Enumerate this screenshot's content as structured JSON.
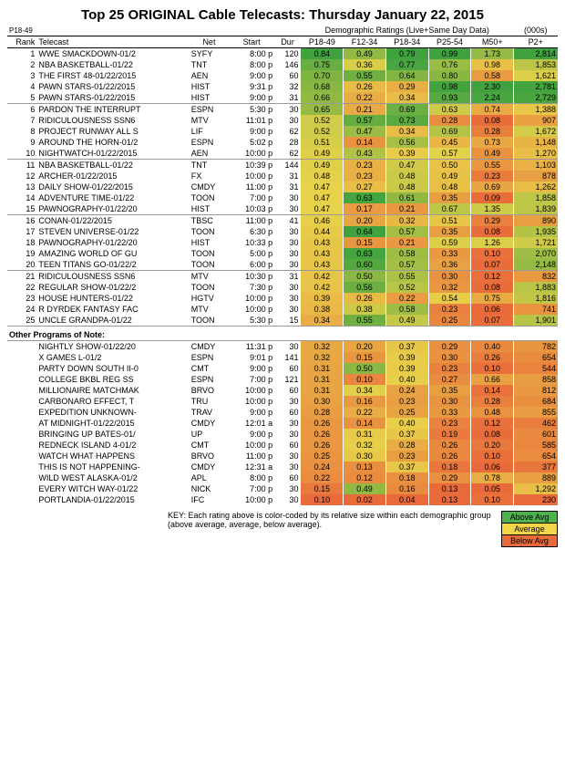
{
  "title": "Top 25 ORIGINAL Cable Telecasts:  Thursday January 22, 2015",
  "corner_label": "P18-49",
  "demo_header": "Demographic Ratings (Live+Same Day Data)",
  "p2_header": "(000s)",
  "columns": [
    "Rank",
    "Telecast",
    "Net",
    "Start",
    "Dur",
    "P18-49",
    "F12-34",
    "P18-34",
    "P25-54",
    "M50+",
    "P2+"
  ],
  "section_label": "Other Programs of Note:",
  "key_text": "KEY: Each rating above is color-coded by its relative size within each demographic group (above average, average, below average).",
  "key_labels": [
    "Above Avg",
    "Average",
    "Below Avg"
  ],
  "key_colors": [
    "#4fb04f",
    "#f3d54a",
    "#e96a3a"
  ],
  "color_scale": {
    "high": "#3fa23f",
    "mid": "#e8d24a",
    "low": "#e96a3a"
  },
  "top25": [
    {
      "rank": 1,
      "telecast": "WWE SMACKDOWN-01/2",
      "net": "SYFY",
      "start": "8:00 p",
      "dur": 120,
      "p1849": 0.84,
      "f1234": 0.49,
      "p1834": 0.79,
      "p2554": 0.99,
      "m50": 1.73,
      "p2": 2814
    },
    {
      "rank": 2,
      "telecast": "NBA BASKETBALL-01/22",
      "net": "TNT",
      "start": "8:00 p",
      "dur": 146,
      "p1849": 0.75,
      "f1234": 0.36,
      "p1834": 0.77,
      "p2554": 0.76,
      "m50": 0.98,
      "p2": 1853
    },
    {
      "rank": 3,
      "telecast": "THE FIRST 48-01/22/2015",
      "net": "AEN",
      "start": "9:00 p",
      "dur": 60,
      "p1849": 0.7,
      "f1234": 0.55,
      "p1834": 0.64,
      "p2554": 0.8,
      "m50": 0.58,
      "p2": 1621
    },
    {
      "rank": 4,
      "telecast": "PAWN STARS-01/22/2015",
      "net": "HIST",
      "start": "9:31 p",
      "dur": 32,
      "p1849": 0.68,
      "f1234": 0.26,
      "p1834": 0.29,
      "p2554": 0.98,
      "m50": 2.3,
      "p2": 2781
    },
    {
      "rank": 5,
      "telecast": "PAWN STARS-01/22/2015",
      "net": "HIST",
      "start": "9:00 p",
      "dur": 31,
      "p1849": 0.66,
      "f1234": 0.22,
      "p1834": 0.34,
      "p2554": 0.93,
      "m50": 2.24,
      "p2": 2729
    },
    {
      "rank": 6,
      "telecast": "PARDON THE INTERRUPT",
      "net": "ESPN",
      "start": "5:30 p",
      "dur": 30,
      "p1849": 0.65,
      "f1234": 0.21,
      "p1834": 0.69,
      "p2554": 0.63,
      "m50": 0.74,
      "p2": 1388
    },
    {
      "rank": 7,
      "telecast": "RIDICULOUSNESS SSN6",
      "net": "MTV",
      "start": "11:01 p",
      "dur": 30,
      "p1849": 0.52,
      "f1234": 0.57,
      "p1834": 0.73,
      "p2554": 0.28,
      "m50": 0.08,
      "p2": 907
    },
    {
      "rank": 8,
      "telecast": "PROJECT RUNWAY ALL S",
      "net": "LIF",
      "start": "9:00 p",
      "dur": 62,
      "p1849": 0.52,
      "f1234": 0.47,
      "p1834": 0.34,
      "p2554": 0.69,
      "m50": 0.28,
      "p2": 1672
    },
    {
      "rank": 9,
      "telecast": "AROUND THE HORN-01/2",
      "net": "ESPN",
      "start": "5:02 p",
      "dur": 28,
      "p1849": 0.51,
      "f1234": 0.14,
      "p1834": 0.56,
      "p2554": 0.45,
      "m50": 0.73,
      "p2": 1148
    },
    {
      "rank": 10,
      "telecast": "NIGHTWATCH-01/22/2015",
      "net": "AEN",
      "start": "10:00 p",
      "dur": 62,
      "p1849": 0.49,
      "f1234": 0.43,
      "p1834": 0.39,
      "p2554": 0.57,
      "m50": 0.49,
      "p2": 1270
    },
    {
      "rank": 11,
      "telecast": "NBA BASKETBALL-01/22",
      "net": "TNT",
      "start": "10:39 p",
      "dur": 144,
      "p1849": 0.49,
      "f1234": 0.23,
      "p1834": 0.47,
      "p2554": 0.5,
      "m50": 0.55,
      "p2": 1103
    },
    {
      "rank": 12,
      "telecast": "ARCHER-01/22/2015",
      "net": "FX",
      "start": "10:00 p",
      "dur": 31,
      "p1849": 0.48,
      "f1234": 0.23,
      "p1834": 0.48,
      "p2554": 0.49,
      "m50": 0.23,
      "p2": 878
    },
    {
      "rank": 13,
      "telecast": "DAILY SHOW-01/22/2015",
      "net": "CMDY",
      "start": "11:00 p",
      "dur": 31,
      "p1849": 0.47,
      "f1234": 0.27,
      "p1834": 0.48,
      "p2554": 0.48,
      "m50": 0.69,
      "p2": 1262
    },
    {
      "rank": 14,
      "telecast": "ADVENTURE TIME-01/22",
      "net": "TOON",
      "start": "7:00 p",
      "dur": 30,
      "p1849": 0.47,
      "f1234": 0.63,
      "p1834": 0.61,
      "p2554": 0.35,
      "m50": 0.09,
      "p2": 1858
    },
    {
      "rank": 15,
      "telecast": "PAWNOGRAPHY-01/22/20",
      "net": "HIST",
      "start": "10:03 p",
      "dur": 30,
      "p1849": 0.47,
      "f1234": 0.17,
      "p1834": 0.21,
      "p2554": 0.67,
      "m50": 1.35,
      "p2": 1839
    },
    {
      "rank": 16,
      "telecast": "CONAN-01/22/2015",
      "net": "TBSC",
      "start": "11:00 p",
      "dur": 41,
      "p1849": 0.46,
      "f1234": 0.2,
      "p1834": 0.32,
      "p2554": 0.51,
      "m50": 0.29,
      "p2": 890
    },
    {
      "rank": 17,
      "telecast": "STEVEN UNIVERSE-01/22",
      "net": "TOON",
      "start": "6:30 p",
      "dur": 30,
      "p1849": 0.44,
      "f1234": 0.64,
      "p1834": 0.57,
      "p2554": 0.35,
      "m50": 0.08,
      "p2": 1935
    },
    {
      "rank": 18,
      "telecast": "PAWNOGRAPHY-01/22/20",
      "net": "HIST",
      "start": "10:33 p",
      "dur": 30,
      "p1849": 0.43,
      "f1234": 0.15,
      "p1834": 0.21,
      "p2554": 0.59,
      "m50": 1.26,
      "p2": 1721
    },
    {
      "rank": 19,
      "telecast": "AMAZING WORLD OF GU",
      "net": "TOON",
      "start": "5:00 p",
      "dur": 30,
      "p1849": 0.43,
      "f1234": 0.63,
      "p1834": 0.58,
      "p2554": 0.33,
      "m50": 0.1,
      "p2": 2070
    },
    {
      "rank": 20,
      "telecast": "TEEN TITANS GO-01/22/2",
      "net": "TOON",
      "start": "6:00 p",
      "dur": 30,
      "p1849": 0.43,
      "f1234": 0.6,
      "p1834": 0.57,
      "p2554": 0.36,
      "m50": 0.07,
      "p2": 2148
    },
    {
      "rank": 21,
      "telecast": "RIDICULOUSNESS SSN6",
      "net": "MTV",
      "start": "10:30 p",
      "dur": 31,
      "p1849": 0.42,
      "f1234": 0.5,
      "p1834": 0.55,
      "p2554": 0.3,
      "m50": 0.12,
      "p2": 832
    },
    {
      "rank": 22,
      "telecast": "REGULAR SHOW-01/22/2",
      "net": "TOON",
      "start": "7:30 p",
      "dur": 30,
      "p1849": 0.42,
      "f1234": 0.56,
      "p1834": 0.52,
      "p2554": 0.32,
      "m50": 0.08,
      "p2": 1883
    },
    {
      "rank": 23,
      "telecast": "HOUSE HUNTERS-01/22",
      "net": "HGTV",
      "start": "10:00 p",
      "dur": 30,
      "p1849": 0.39,
      "f1234": 0.26,
      "p1834": 0.22,
      "p2554": 0.54,
      "m50": 0.75,
      "p2": 1816
    },
    {
      "rank": 24,
      "telecast": "R DYRDEK FANTASY FAC",
      "net": "MTV",
      "start": "10:00 p",
      "dur": 30,
      "p1849": 0.38,
      "f1234": 0.38,
      "p1834": 0.58,
      "p2554": 0.23,
      "m50": 0.06,
      "p2": 741
    },
    {
      "rank": 25,
      "telecast": "UNCLE GRANDPA-01/22",
      "net": "TOON",
      "start": "5:30 p",
      "dur": 15,
      "p1849": 0.34,
      "f1234": 0.55,
      "p1834": 0.49,
      "p2554": 0.25,
      "m50": 0.07,
      "p2": 1901
    }
  ],
  "other": [
    {
      "telecast": "NIGHTLY SHOW-01/22/20",
      "net": "CMDY",
      "start": "11:31 p",
      "dur": 30,
      "p1849": 0.32,
      "f1234": 0.2,
      "p1834": 0.37,
      "p2554": 0.29,
      "m50": 0.4,
      "p2": 782
    },
    {
      "telecast": "X GAMES         L-01/2",
      "net": "ESPN",
      "start": "9:01 p",
      "dur": 141,
      "p1849": 0.32,
      "f1234": 0.15,
      "p1834": 0.39,
      "p2554": 0.3,
      "m50": 0.26,
      "p2": 654
    },
    {
      "telecast": "PARTY DOWN SOUTH II-0",
      "net": "CMT",
      "start": "9:00 p",
      "dur": 60,
      "p1849": 0.31,
      "f1234": 0.5,
      "p1834": 0.39,
      "p2554": 0.23,
      "m50": 0.1,
      "p2": 544
    },
    {
      "telecast": "COLLEGE BKBL REG SS",
      "net": "ESPN",
      "start": "7:00 p",
      "dur": 121,
      "p1849": 0.31,
      "f1234": 0.1,
      "p1834": 0.4,
      "p2554": 0.27,
      "m50": 0.66,
      "p2": 858
    },
    {
      "telecast": "MILLIONAIRE MATCHMAK",
      "net": "BRVO",
      "start": "10:00 p",
      "dur": 60,
      "p1849": 0.31,
      "f1234": 0.34,
      "p1834": 0.24,
      "p2554": 0.35,
      "m50": 0.14,
      "p2": 812
    },
    {
      "telecast": "CARBONARO EFFECT, T",
      "net": "TRU",
      "start": "10:00 p",
      "dur": 30,
      "p1849": 0.3,
      "f1234": 0.16,
      "p1834": 0.23,
      "p2554": 0.3,
      "m50": 0.28,
      "p2": 684
    },
    {
      "telecast": "EXPEDITION UNKNOWN-",
      "net": "TRAV",
      "start": "9:00 p",
      "dur": 60,
      "p1849": 0.28,
      "f1234": 0.22,
      "p1834": 0.25,
      "p2554": 0.33,
      "m50": 0.48,
      "p2": 855
    },
    {
      "telecast": "AT MIDNIGHT-01/22/2015",
      "net": "CMDY",
      "start": "12:01 a",
      "dur": 30,
      "p1849": 0.26,
      "f1234": 0.14,
      "p1834": 0.4,
      "p2554": 0.23,
      "m50": 0.12,
      "p2": 462
    },
    {
      "telecast": "BRINGING UP BATES-01/",
      "net": "UP",
      "start": "9:00 p",
      "dur": 30,
      "p1849": 0.26,
      "f1234": 0.31,
      "p1834": 0.37,
      "p2554": 0.19,
      "m50": 0.08,
      "p2": 601
    },
    {
      "telecast": "REDNECK ISLAND 4-01/2",
      "net": "CMT",
      "start": "10:00 p",
      "dur": 60,
      "p1849": 0.26,
      "f1234": 0.32,
      "p1834": 0.28,
      "p2554": 0.26,
      "m50": 0.2,
      "p2": 585
    },
    {
      "telecast": "WATCH WHAT HAPPENS",
      "net": "BRVO",
      "start": "11:00 p",
      "dur": 30,
      "p1849": 0.25,
      "f1234": 0.3,
      "p1834": 0.23,
      "p2554": 0.26,
      "m50": 0.1,
      "p2": 654
    },
    {
      "telecast": "THIS IS NOT HAPPENING-",
      "net": "CMDY",
      "start": "12:31 a",
      "dur": 30,
      "p1849": 0.24,
      "f1234": 0.13,
      "p1834": 0.37,
      "p2554": 0.18,
      "m50": 0.06,
      "p2": 377
    },
    {
      "telecast": "WILD WEST ALASKA-01/2",
      "net": "APL",
      "start": "8:00 p",
      "dur": 60,
      "p1849": 0.22,
      "f1234": 0.12,
      "p1834": 0.18,
      "p2554": 0.29,
      "m50": 0.78,
      "p2": 889
    },
    {
      "telecast": "EVERY WITCH WAY-01/22",
      "net": "NICK",
      "start": "7:00 p",
      "dur": 30,
      "p1849": 0.15,
      "f1234": 0.49,
      "p1834": 0.16,
      "p2554": 0.13,
      "m50": 0.05,
      "p2": 1292
    },
    {
      "telecast": "PORTLANDIA-01/22/2015",
      "net": "IFC",
      "start": "10:00 p",
      "dur": 30,
      "p1849": 0.1,
      "f1234": 0.02,
      "p1834": 0.04,
      "p2554": 0.13,
      "m50": 0.1,
      "p2": 230
    }
  ],
  "ranges": {
    "p1849": [
      0.1,
      0.84
    ],
    "f1234": [
      0.02,
      0.64
    ],
    "p1834": [
      0.04,
      0.79
    ],
    "p2554": [
      0.13,
      0.99
    ],
    "m50": [
      0.05,
      2.3
    ],
    "p2": [
      230,
      2814
    ]
  }
}
